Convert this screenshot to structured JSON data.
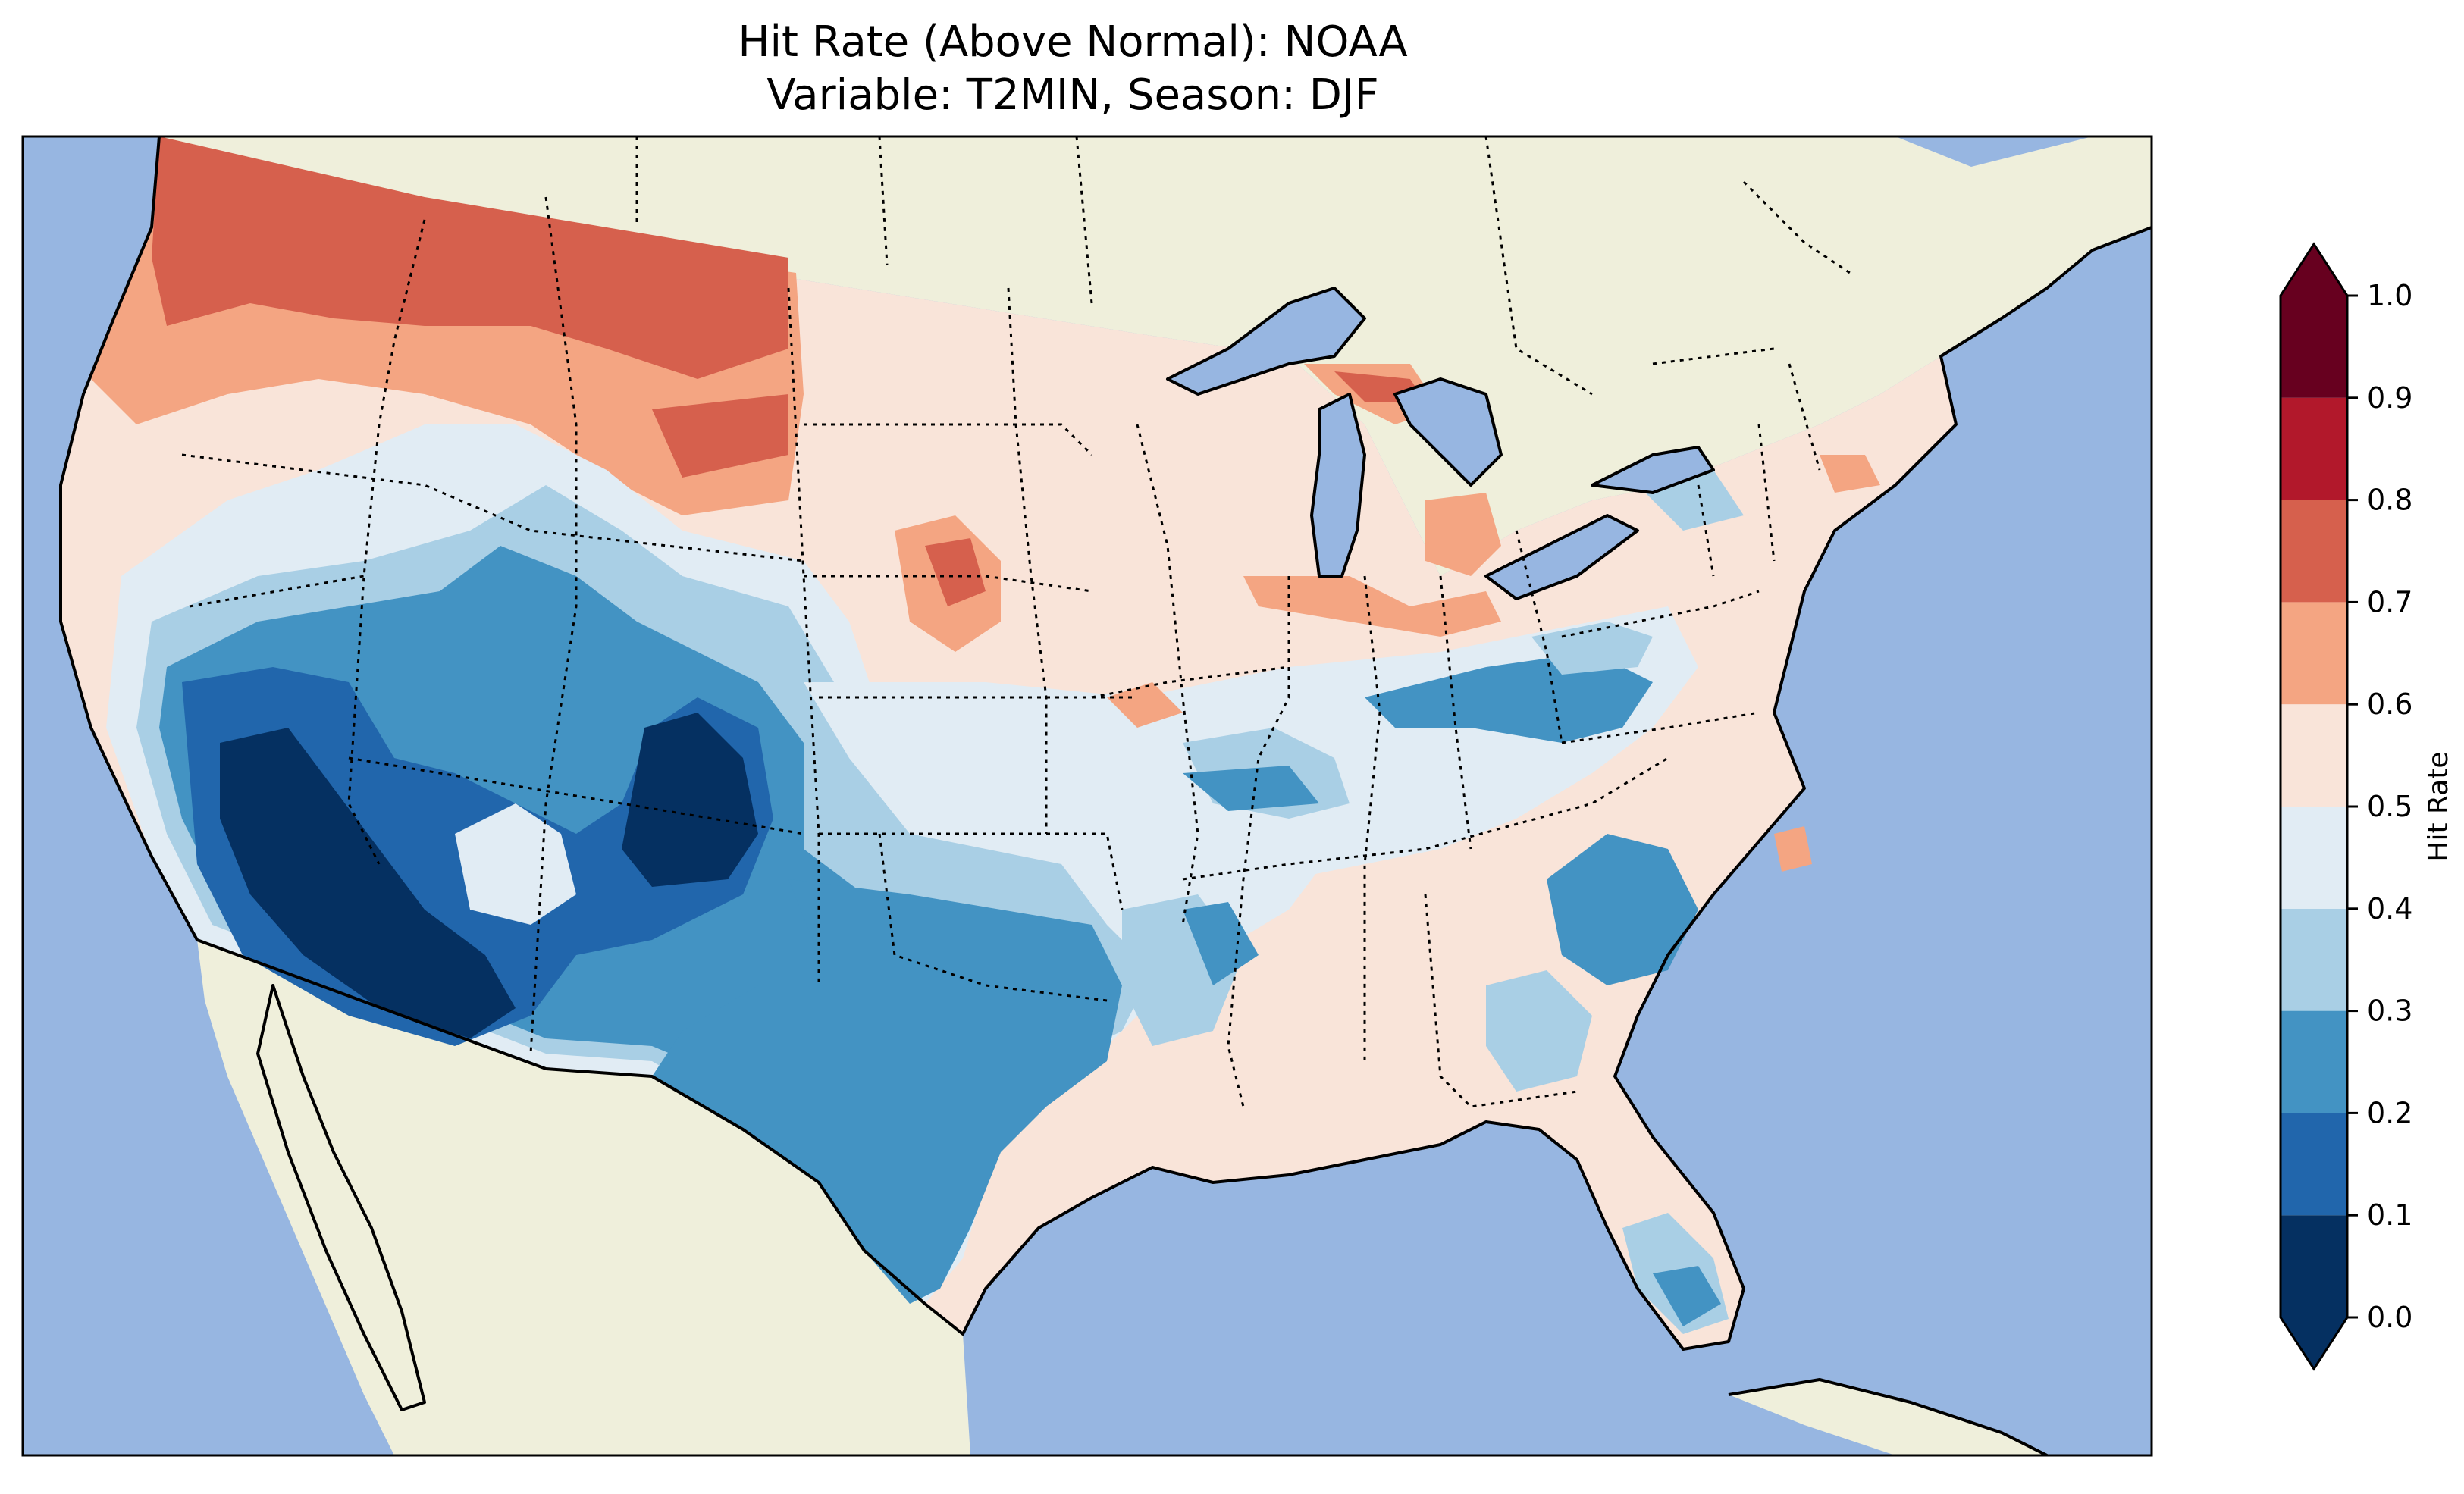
{
  "title": {
    "line1": "Hit Rate (Above Normal): NOAA",
    "line2": "Variable: T2MIN, Season: DJF"
  },
  "colors": {
    "ocean": "#97b6e1",
    "land": "#efefdb",
    "coast": "#000000"
  },
  "colorbar": {
    "label": "Hit Rate",
    "ticks": [
      "0.0",
      "0.1",
      "0.2",
      "0.3",
      "0.4",
      "0.5",
      "0.6",
      "0.7",
      "0.8",
      "0.9",
      "1.0"
    ],
    "bins": [
      {
        "from": 0.0,
        "to": 0.1,
        "color": "#053061"
      },
      {
        "from": 0.1,
        "to": 0.2,
        "color": "#2166ac"
      },
      {
        "from": 0.2,
        "to": 0.3,
        "color": "#4393c3"
      },
      {
        "from": 0.3,
        "to": 0.4,
        "color": "#a9cfe5"
      },
      {
        "from": 0.4,
        "to": 0.5,
        "color": "#e1ecf4"
      },
      {
        "from": 0.5,
        "to": 0.6,
        "color": "#f9e4d9"
      },
      {
        "from": 0.6,
        "to": 0.7,
        "color": "#f4a582"
      },
      {
        "from": 0.7,
        "to": 0.8,
        "color": "#d6604d"
      },
      {
        "from": 0.8,
        "to": 0.9,
        "color": "#b2182b"
      },
      {
        "from": 0.9,
        "to": 1.0,
        "color": "#67001f"
      }
    ],
    "extend_under_color": "#053061",
    "extend_over_color": "#67001f"
  }
}
